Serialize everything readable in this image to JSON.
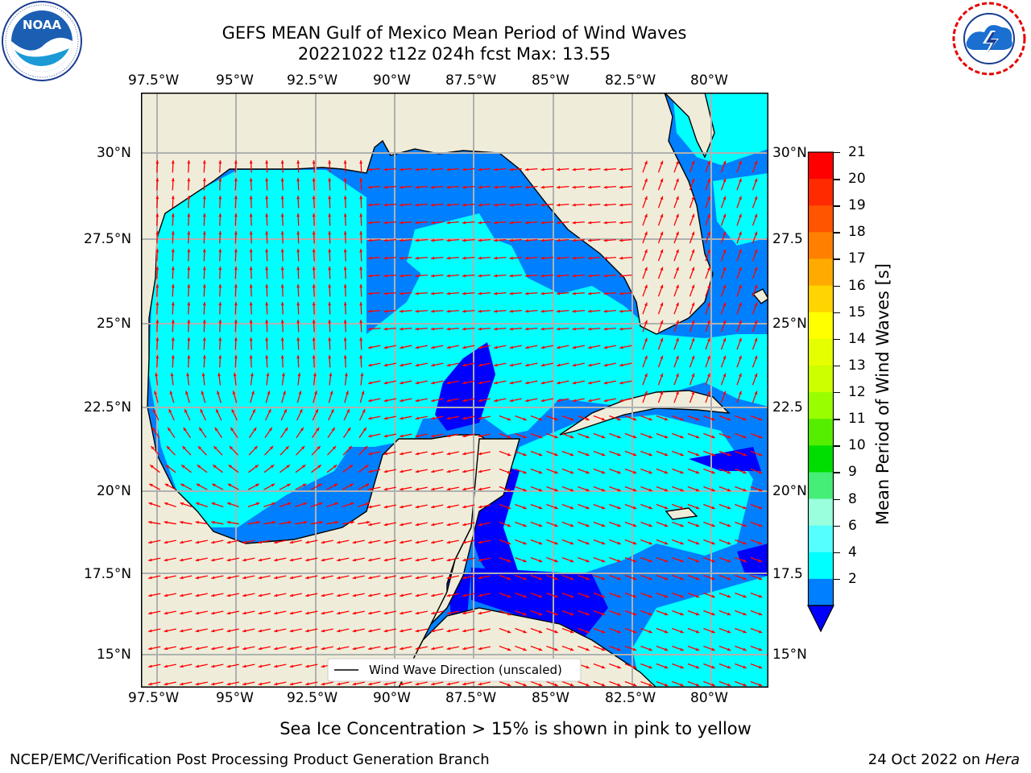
{
  "header": {
    "title_line1": "GEFS MEAN Gulf of Mexico Mean Period of Wind Waves",
    "title_line2": "20221022 t12z 024h fcst   Max: 13.55"
  },
  "logos": {
    "left": {
      "text": "NOAA",
      "ring": "NATIONAL OCEANIC AND ATMOSPHERIC ADMINISTRATION · U.S. DEPARTMENT OF COMMERCE",
      "icon": "noaa-logo"
    },
    "right": {
      "ring": "NATIONAL WEATHER SERVICE",
      "icon": "nws-logo"
    }
  },
  "map": {
    "lon_labels": [
      "97.5°W",
      "95°W",
      "92.5°W",
      "90°W",
      "87.5°W",
      "85°W",
      "82.5°W",
      "80°W"
    ],
    "lat_labels_left": [
      "30°N",
      "27.5°N",
      "25°N",
      "22.5°N",
      "20°N",
      "17.5°N",
      "15°N"
    ],
    "lat_labels_right": [
      "30°N",
      "27.5",
      "25°N",
      "22.5",
      "20°N",
      "17.5",
      "15°N"
    ],
    "legend_label": "Wind Wave Direction (unscaled)",
    "colors": {
      "land": "#efedda",
      "ocean_light": "#00ffff",
      "ocean_mid": "#0080ff",
      "ocean_dark": "#0000ff",
      "arrow": "#ff0000",
      "grid": "#b0b0b0"
    }
  },
  "colorbar": {
    "label": "Mean Period of Wind Waves [s]",
    "ticks": [
      "21",
      "20",
      "19",
      "18",
      "17",
      "16",
      "15",
      "14",
      "13",
      "12",
      "11",
      "10",
      "9",
      "8",
      "6",
      "4",
      "2"
    ],
    "colors": [
      "#ff0000",
      "#ff2a00",
      "#ff5500",
      "#ff8000",
      "#ffaa00",
      "#ffd400",
      "#ffff00",
      "#e6ff00",
      "#ccff00",
      "#99ff00",
      "#55ee00",
      "#00dd00",
      "#44ee77",
      "#99ffdd",
      "#55ffff",
      "#00ffff",
      "#0080ff"
    ],
    "under_color": "#0000ff"
  },
  "caption": "Sea Ice Concentration > 15% is shown in pink to yellow",
  "footer": {
    "left": "NCEP/EMC/Verification Post Processing Product Generation Branch",
    "right_date": "24 Oct 2022 on ",
    "right_host": "Hera"
  }
}
